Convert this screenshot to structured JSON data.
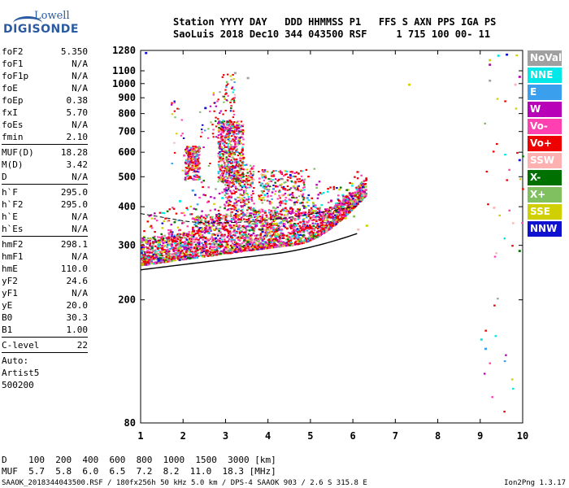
{
  "logo": {
    "line1": "Lowell",
    "line2": "DIGISONDE"
  },
  "header": {
    "line1": "Station YYYY DAY   DDD HHMMSS P1   FFS S AXN PPS IGA PS",
    "line2": "SaoLuis 2018 Dec10 344 043500 RSF     1 715 100 00- 11"
  },
  "params": {
    "group1": [
      {
        "key": "foF2",
        "value": "5.350"
      },
      {
        "key": "foF1",
        "value": "N/A"
      },
      {
        "key": "foF1p",
        "value": "N/A"
      },
      {
        "key": "foE",
        "value": "N/A"
      },
      {
        "key": "foEp",
        "value": "0.38"
      },
      {
        "key": "fxI",
        "value": "5.70"
      },
      {
        "key": "foEs",
        "value": "N/A"
      },
      {
        "key": "fmin",
        "value": "2.10"
      }
    ],
    "group2": [
      {
        "key": "MUF(D)",
        "value": "18.28"
      },
      {
        "key": "M(D)",
        "value": "3.42"
      },
      {
        "key": "D",
        "value": "N/A"
      }
    ],
    "group3": [
      {
        "key": "h`F",
        "value": "295.0"
      },
      {
        "key": "h`F2",
        "value": "295.0"
      },
      {
        "key": "h`E",
        "value": "N/A"
      },
      {
        "key": "h`Es",
        "value": "N/A"
      }
    ],
    "group4": [
      {
        "key": "hmF2",
        "value": "298.1"
      },
      {
        "key": "hmF1",
        "value": "N/A"
      },
      {
        "key": "hmE",
        "value": "110.0"
      },
      {
        "key": "yF2",
        "value": "24.6"
      },
      {
        "key": "yF1",
        "value": "N/A"
      },
      {
        "key": "yE",
        "value": "20.0"
      },
      {
        "key": "B0",
        "value": "30.3"
      },
      {
        "key": "B1",
        "value": "1.00"
      }
    ],
    "clevel": {
      "key": "C-level",
      "value": "22"
    },
    "auto": [
      "Auto:",
      "Artist5",
      "500200"
    ]
  },
  "legend": [
    {
      "label": "NoVal",
      "color": "#a0a0a0"
    },
    {
      "label": "NNE",
      "color": "#00e8e8"
    },
    {
      "label": "E",
      "color": "#3aa0ee"
    },
    {
      "label": "W",
      "color": "#b800b8"
    },
    {
      "label": "Vo-",
      "color": "#ff40b0"
    },
    {
      "label": "Vo+",
      "color": "#ee0000"
    },
    {
      "label": "SSW",
      "color": "#ffb0b0"
    },
    {
      "label": "X-",
      "color": "#007000"
    },
    {
      "label": "X+",
      "color": "#80c060"
    },
    {
      "label": "SSE",
      "color": "#d0d000"
    },
    {
      "label": "NNW",
      "color": "#1010d0"
    }
  ],
  "dtable": {
    "line1": "D    100  200  400  600  800  1000  1500  3000 [km]",
    "line2": "MUF  5.7  5.8  6.0  6.5  7.2  8.2  11.0  18.3 [MHz]"
  },
  "footer": "SAAOK_2018344043500.RSF / 180fx256h 50 kHz 5.0 km / DPS-4 SAAOK 903 / 2.6 S 315.8 E",
  "version": "Ion2Png 1.3.17",
  "chart_data": {
    "type": "scatter",
    "title": "",
    "xlabel": "",
    "ylabel": "",
    "xlim": [
      1,
      10
    ],
    "ylim": [
      80,
      1280
    ],
    "y_scale": "log",
    "x_ticks": [
      1,
      2,
      3,
      4,
      5,
      6,
      7,
      8,
      9,
      10
    ],
    "y_ticks": [
      80,
      200,
      300,
      400,
      500,
      600,
      700,
      800,
      900,
      1000,
      1100,
      1280
    ],
    "series": [
      {
        "name": "Vo+",
        "points": [
          [
            2.1,
            305
          ],
          [
            2.5,
            320
          ],
          [
            3.0,
            310
          ],
          [
            3.5,
            300
          ],
          [
            4.0,
            315
          ],
          [
            4.5,
            330
          ],
          [
            5.0,
            335
          ],
          [
            5.5,
            350
          ],
          [
            2.2,
            560
          ],
          [
            3.1,
            620
          ],
          [
            3.4,
            580
          ]
        ]
      },
      {
        "name": "Vo-",
        "points": [
          [
            1.8,
            285
          ],
          [
            2.3,
            300
          ],
          [
            2.8,
            315
          ],
          [
            3.3,
            305
          ],
          [
            3.8,
            320
          ],
          [
            4.3,
            340
          ],
          [
            4.8,
            345
          ],
          [
            3.2,
            650
          ],
          [
            2.0,
            590
          ]
        ]
      },
      {
        "name": "W",
        "points": [
          [
            2.0,
            330
          ],
          [
            2.6,
            345
          ],
          [
            3.2,
            360
          ],
          [
            3.7,
            350
          ],
          [
            4.2,
            370
          ],
          [
            4.7,
            375
          ],
          [
            5.2,
            380
          ],
          [
            9.2,
            1160
          ],
          [
            9.9,
            1060
          ]
        ]
      },
      {
        "name": "X+",
        "points": [
          [
            2.4,
            365
          ],
          [
            3.0,
            380
          ],
          [
            3.6,
            395
          ],
          [
            4.1,
            400
          ],
          [
            4.6,
            410
          ],
          [
            5.1,
            390
          ],
          [
            5.6,
            380
          ],
          [
            6.0,
            375
          ]
        ]
      },
      {
        "name": "SSE",
        "points": [
          [
            1.1,
            310
          ],
          [
            2.7,
            340
          ],
          [
            4.4,
            390
          ],
          [
            5.8,
            370
          ],
          [
            6.3,
            350
          ],
          [
            7.3,
            1000
          ],
          [
            9.2,
            1200
          ]
        ]
      },
      {
        "name": "NNE",
        "points": [
          [
            2.9,
            430
          ],
          [
            3.4,
            470
          ],
          [
            3.9,
            440
          ],
          [
            4.4,
            420
          ],
          [
            1.9,
            420
          ],
          [
            9.0,
            150
          ],
          [
            9.4,
            1240
          ]
        ]
      },
      {
        "name": "E",
        "points": [
          [
            2.2,
            455
          ],
          [
            3.1,
            500
          ],
          [
            3.6,
            480
          ],
          [
            4.1,
            460
          ],
          [
            4.9,
            430
          ],
          [
            9.1,
            140
          ]
        ]
      },
      {
        "name": "NNW",
        "points": [
          [
            1.4,
            270
          ],
          [
            2.5,
            840
          ],
          [
            3.0,
            455
          ],
          [
            4.5,
            510
          ],
          [
            9.9,
            570
          ],
          [
            9.6,
            1250
          ],
          [
            1.1,
            1265
          ]
        ]
      },
      {
        "name": "SSW",
        "points": [
          [
            2.8,
            330
          ],
          [
            3.9,
            340
          ],
          [
            5.3,
            355
          ],
          [
            6.1,
            340
          ],
          [
            9.3,
            400
          ],
          [
            9.8,
            1000
          ]
        ]
      },
      {
        "name": "X-",
        "points": [
          [
            2.3,
            295
          ],
          [
            3.5,
            310
          ],
          [
            4.6,
            330
          ],
          [
            9.9,
            290
          ]
        ]
      },
      {
        "name": "NoVal",
        "points": [
          [
            3.2,
            1090
          ],
          [
            3.5,
            1050
          ],
          [
            9.2,
            1030
          ]
        ]
      }
    ]
  }
}
